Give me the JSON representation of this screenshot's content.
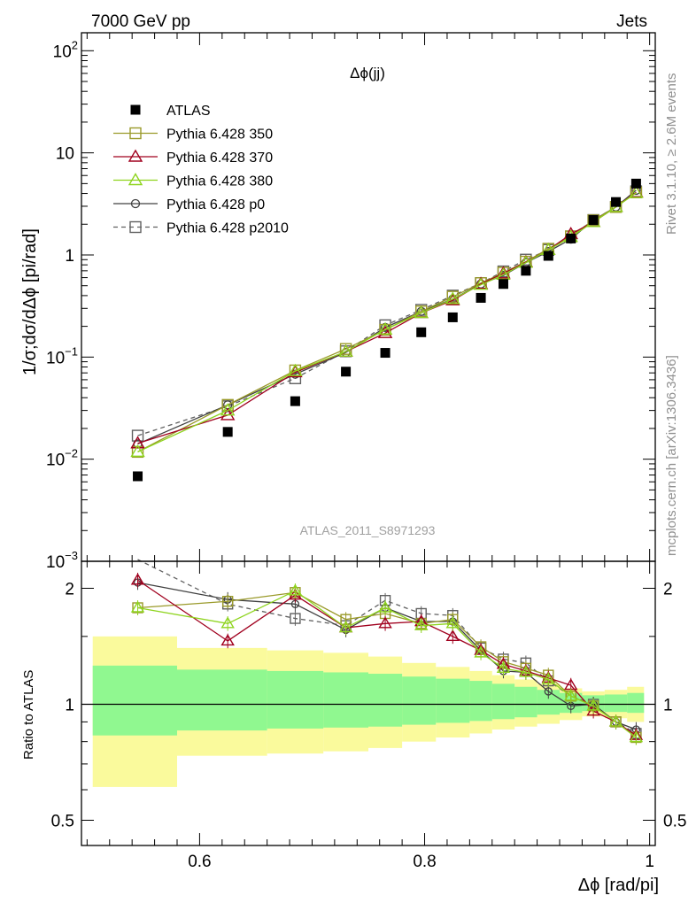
{
  "header": {
    "left": "7000 GeV pp",
    "right": "Jets"
  },
  "side": {
    "rivet": "Rivet 3.1.10, ≥ 2.6M events",
    "mcplots": "mcplots.cern.ch [arXiv:1306.3436]"
  },
  "colors": {
    "atlas": "#000000",
    "p350": "#9a9a2a",
    "p370": "#a0001e",
    "p380": "#8ed41e",
    "p0": "#404040",
    "p2010": "#606060",
    "band_inner": "#90f890",
    "band_outer": "#fafa9c"
  },
  "chart_data": [
    {
      "type": "scatter",
      "title": "Δϕ(jj)",
      "watermark": "ATLAS_2011_S8971293",
      "ylabel": "1/σ;dσ/dΔϕ [pi/rad]",
      "yscale": "log",
      "ylim": [
        0.001,
        150
      ],
      "xlim": [
        0.495,
        1.005
      ],
      "yticks": [
        {
          "v": 100,
          "base": "10",
          "exp": "2"
        },
        {
          "v": 10,
          "base": "10",
          "exp": ""
        },
        {
          "v": 1,
          "base": "1",
          "exp": ""
        },
        {
          "v": 0.1,
          "base": "10",
          "exp": "−1"
        },
        {
          "v": 0.01,
          "base": "10",
          "exp": "−2"
        },
        {
          "v": 0.001,
          "base": "10",
          "exp": "−3"
        }
      ],
      "legend_position": "top-left",
      "legend": [
        {
          "key": "atlas",
          "label": "ATLAS"
        },
        {
          "key": "p350",
          "label": "Pythia 6.428 350"
        },
        {
          "key": "p370",
          "label": "Pythia 6.428 370"
        },
        {
          "key": "p380",
          "label": "Pythia 6.428 380"
        },
        {
          "key": "p0",
          "label": "Pythia 6.428 p0"
        },
        {
          "key": "p2010",
          "label": "Pythia 6.428 p2010"
        }
      ],
      "x": [
        0.545,
        0.625,
        0.685,
        0.73,
        0.765,
        0.797,
        0.825,
        0.85,
        0.87,
        0.89,
        0.91,
        0.93,
        0.95,
        0.97,
        0.988
      ],
      "series": [
        {
          "key": "atlas",
          "name": "ATLAS",
          "marker": "filled-square",
          "line": "none",
          "values": [
            0.0068,
            0.0185,
            0.037,
            0.072,
            0.11,
            0.175,
            0.245,
            0.38,
            0.52,
            0.7,
            0.98,
            1.45,
            2.2,
            3.3,
            5.0
          ]
        },
        {
          "key": "p350",
          "name": "Pythia 6.428 350",
          "marker": "open-square",
          "line": "solid",
          "values": [
            0.0118,
            0.034,
            0.074,
            0.12,
            0.185,
            0.28,
            0.39,
            0.53,
            0.67,
            0.86,
            1.15,
            1.52,
            2.18,
            2.95,
            4.1
          ]
        },
        {
          "key": "p370",
          "name": "Pythia 6.428 370",
          "marker": "open-triangle",
          "line": "solid",
          "values": [
            0.0143,
            0.027,
            0.071,
            0.113,
            0.172,
            0.27,
            0.36,
            0.52,
            0.66,
            0.85,
            1.12,
            1.6,
            2.1,
            2.95,
            4.1
          ]
        },
        {
          "key": "p380",
          "name": "Pythia 6.428 380",
          "marker": "open-triangle",
          "line": "solid",
          "values": [
            0.0118,
            0.03,
            0.073,
            0.113,
            0.186,
            0.27,
            0.37,
            0.51,
            0.64,
            0.84,
            1.12,
            1.5,
            2.1,
            2.95,
            4.05
          ]
        },
        {
          "key": "p0",
          "name": "Pythia 6.428 p0",
          "marker": "open-circle",
          "line": "solid",
          "values": [
            0.0141,
            0.034,
            0.068,
            0.111,
            0.195,
            0.28,
            0.37,
            0.52,
            0.63,
            0.84,
            1.08,
            1.43,
            2.2,
            2.95,
            4.3
          ]
        },
        {
          "key": "p2010",
          "name": "Pythia 6.428 p2010",
          "marker": "open-square",
          "line": "dashed",
          "values": [
            0.017,
            0.033,
            0.062,
            0.114,
            0.205,
            0.29,
            0.4,
            0.53,
            0.69,
            0.9,
            1.12,
            1.52,
            2.2,
            2.95,
            4.2
          ]
        }
      ]
    },
    {
      "type": "line",
      "ylabel": "Ratio to ATLAS",
      "xlabel": "Δϕ [rad/pi]",
      "yscale": "log",
      "ylim": [
        0.43,
        2.35
      ],
      "xlim": [
        0.495,
        1.005
      ],
      "xticks": [
        {
          "v": 0.6,
          "label": "0.6"
        },
        {
          "v": 0.8,
          "label": "0.8"
        },
        {
          "v": 1.0,
          "label": "1"
        }
      ],
      "yticks": [
        {
          "v": 2,
          "label": "2"
        },
        {
          "v": 1,
          "label": "1"
        },
        {
          "v": 0.5,
          "label": "0.5"
        }
      ],
      "band_bins": [
        {
          "lo": 0.505,
          "hi": 0.58,
          "inner": [
            0.83,
            1.26
          ],
          "outer": [
            0.61,
            1.5
          ]
        },
        {
          "lo": 0.58,
          "hi": 0.66,
          "inner": [
            0.855,
            1.23
          ],
          "outer": [
            0.735,
            1.4
          ]
        },
        {
          "lo": 0.66,
          "hi": 0.71,
          "inner": [
            0.865,
            1.22
          ],
          "outer": [
            0.745,
            1.38
          ]
        },
        {
          "lo": 0.71,
          "hi": 0.75,
          "inner": [
            0.87,
            1.21
          ],
          "outer": [
            0.755,
            1.36
          ]
        },
        {
          "lo": 0.75,
          "hi": 0.78,
          "inner": [
            0.875,
            1.2
          ],
          "outer": [
            0.77,
            1.33
          ]
        },
        {
          "lo": 0.78,
          "hi": 0.81,
          "inner": [
            0.885,
            1.18
          ],
          "outer": [
            0.8,
            1.28
          ]
        },
        {
          "lo": 0.81,
          "hi": 0.84,
          "inner": [
            0.895,
            1.165
          ],
          "outer": [
            0.82,
            1.25
          ]
        },
        {
          "lo": 0.84,
          "hi": 0.86,
          "inner": [
            0.905,
            1.15
          ],
          "outer": [
            0.84,
            1.22
          ]
        },
        {
          "lo": 0.86,
          "hi": 0.88,
          "inner": [
            0.915,
            1.13
          ],
          "outer": [
            0.86,
            1.19
          ]
        },
        {
          "lo": 0.88,
          "hi": 0.9,
          "inner": [
            0.925,
            1.11
          ],
          "outer": [
            0.875,
            1.16
          ]
        },
        {
          "lo": 0.9,
          "hi": 0.92,
          "inner": [
            0.94,
            1.09
          ],
          "outer": [
            0.89,
            1.13
          ]
        },
        {
          "lo": 0.92,
          "hi": 0.94,
          "inner": [
            0.95,
            1.07
          ],
          "outer": [
            0.91,
            1.1
          ]
        },
        {
          "lo": 0.94,
          "hi": 0.96,
          "inner": [
            0.96,
            1.055
          ],
          "outer": [
            0.93,
            1.08
          ]
        },
        {
          "lo": 0.96,
          "hi": 0.98,
          "inner": [
            0.955,
            1.06
          ],
          "outer": [
            0.92,
            1.09
          ]
        },
        {
          "lo": 0.98,
          "hi": 0.995,
          "inner": [
            0.95,
            1.07
          ],
          "outer": [
            0.9,
            1.11
          ]
        }
      ],
      "x": [
        0.545,
        0.625,
        0.685,
        0.73,
        0.765,
        0.797,
        0.825,
        0.85,
        0.87,
        0.89,
        0.91,
        0.93,
        0.95,
        0.97,
        0.988
      ],
      "series": [
        {
          "key": "p350",
          "name": "Pythia 6.428 350",
          "values": [
            1.78,
            1.85,
            1.95,
            1.66,
            1.72,
            1.62,
            1.66,
            1.41,
            1.29,
            1.24,
            1.19,
            1.05,
            0.99,
            0.9,
            0.82
          ]
        },
        {
          "key": "p370",
          "name": "Pythia 6.428 370",
          "values": [
            2.1,
            1.46,
            1.92,
            1.58,
            1.62,
            1.64,
            1.5,
            1.38,
            1.27,
            1.22,
            1.17,
            1.12,
            0.96,
            0.9,
            0.83
          ]
        },
        {
          "key": "p380",
          "name": "Pythia 6.428 380",
          "values": [
            1.78,
            1.62,
            1.97,
            1.58,
            1.78,
            1.6,
            1.62,
            1.36,
            1.24,
            1.21,
            1.16,
            1.05,
            0.99,
            0.9,
            0.82
          ]
        },
        {
          "key": "p0",
          "name": "Pythia 6.428 p0",
          "values": [
            2.07,
            1.87,
            1.82,
            1.56,
            1.78,
            1.64,
            1.64,
            1.38,
            1.22,
            1.21,
            1.08,
            0.99,
            1.0,
            0.9,
            0.86
          ]
        },
        {
          "key": "p2010",
          "name": "Pythia 6.428 p2010",
          "values": [
            2.5,
            1.82,
            1.67,
            1.6,
            1.86,
            1.72,
            1.7,
            1.4,
            1.31,
            1.28,
            1.15,
            1.05,
            1.0,
            0.9,
            0.84
          ]
        }
      ]
    }
  ]
}
